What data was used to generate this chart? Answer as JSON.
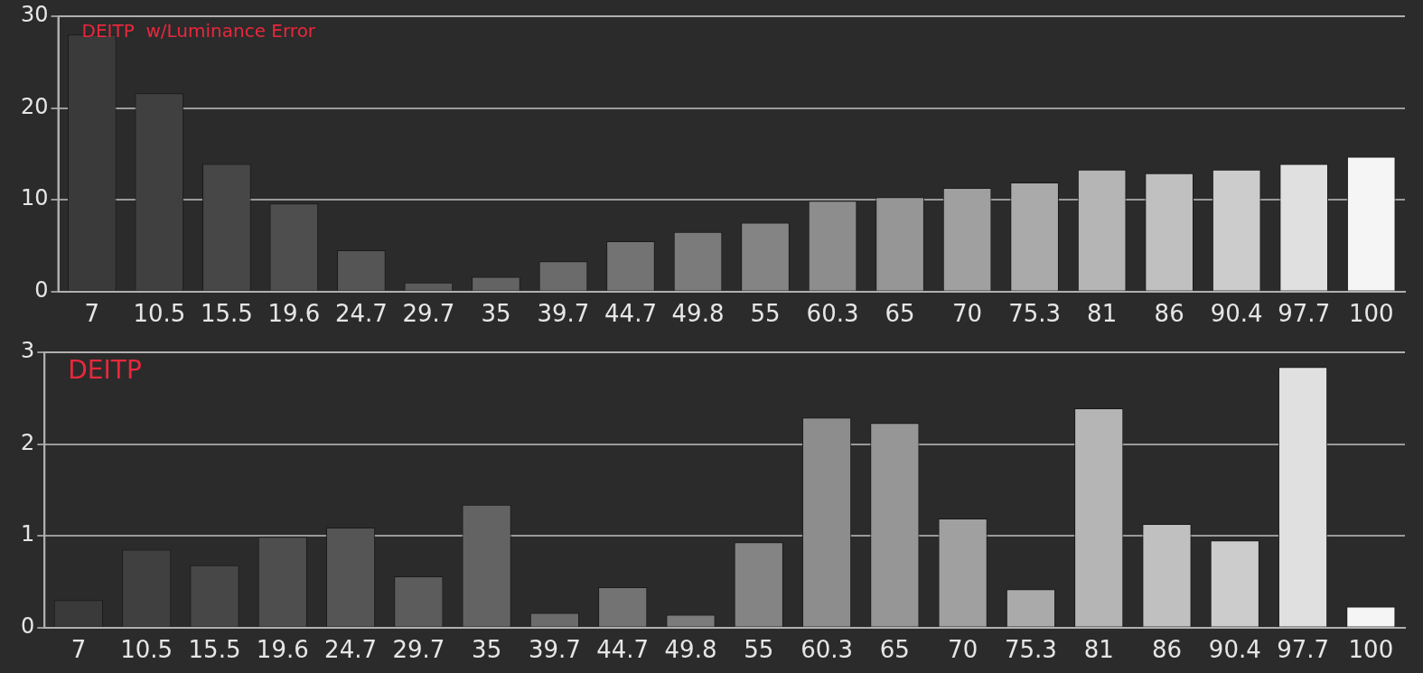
{
  "chart_data": [
    {
      "type": "bar",
      "title": "DEITP  w/Luminance Error",
      "categories": [
        "7",
        "10.5",
        "15.5",
        "19.6",
        "24.7",
        "29.7",
        "35",
        "39.7",
        "44.7",
        "49.8",
        "55",
        "60.3",
        "65",
        "70",
        "75.3",
        "81",
        "86",
        "90.4",
        "97.7",
        "100"
      ],
      "values": [
        28,
        21.6,
        13.9,
        9.6,
        4.5,
        1,
        1.6,
        3.3,
        5.5,
        6.5,
        7.5,
        9.9,
        10.3,
        11.3,
        11.9,
        13.3,
        12.9,
        13.3,
        13.9,
        14.7
      ],
      "colors": [
        "#3a3a3a",
        "#404040",
        "#474747",
        "#4e4e4e",
        "#555555",
        "#5c5c5c",
        "#636363",
        "#6b6b6b",
        "#737373",
        "#7b7b7b",
        "#848484",
        "#8d8d8d",
        "#969696",
        "#a0a0a0",
        "#aaaaaa",
        "#b5b5b5",
        "#c0c0c0",
        "#cccccc",
        "#e0e0e0",
        "#f5f5f5"
      ],
      "ylim": [
        0,
        30
      ],
      "yticks": [
        0,
        10,
        20,
        30
      ],
      "grid": "y"
    },
    {
      "type": "bar",
      "title": "DEITP",
      "categories": [
        "7",
        "10.5",
        "15.5",
        "19.6",
        "24.7",
        "29.7",
        "35",
        "39.7",
        "44.7",
        "49.8",
        "55",
        "60.3",
        "65",
        "70",
        "75.3",
        "81",
        "86",
        "90.4",
        "97.7",
        "100"
      ],
      "values": [
        0.3,
        0.85,
        0.68,
        0.99,
        1.09,
        0.56,
        1.34,
        0.16,
        0.44,
        0.14,
        0.93,
        2.29,
        2.23,
        1.19,
        0.42,
        2.39,
        1.13,
        0.95,
        2.84,
        0.23
      ],
      "colors": [
        "#3a3a3a",
        "#404040",
        "#474747",
        "#4e4e4e",
        "#555555",
        "#5c5c5c",
        "#636363",
        "#6b6b6b",
        "#737373",
        "#7b7b7b",
        "#848484",
        "#8d8d8d",
        "#969696",
        "#a0a0a0",
        "#aaaaaa",
        "#b5b5b5",
        "#c0c0c0",
        "#cccccc",
        "#e0e0e0",
        "#f5f5f5"
      ],
      "ylim": [
        0,
        3
      ],
      "yticks": [
        0,
        1,
        2,
        3
      ],
      "grid": "y"
    }
  ]
}
